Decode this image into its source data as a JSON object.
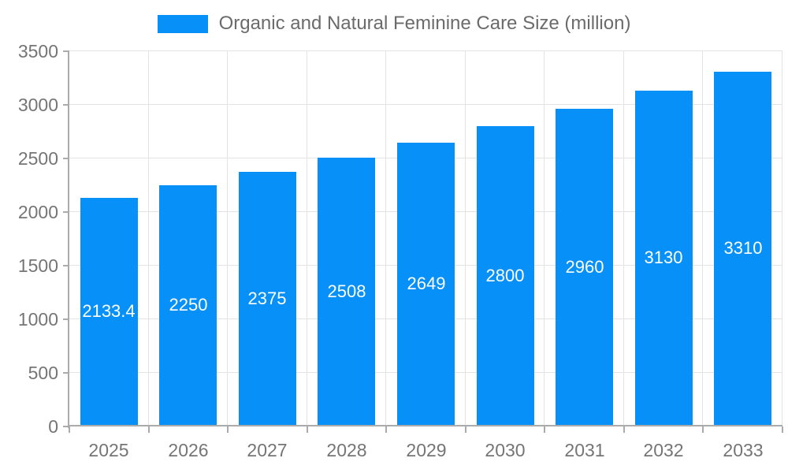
{
  "chart_data": {
    "type": "bar",
    "legend": "Organic and Natural Feminine Care Size (million)",
    "legend_position": "top",
    "categories": [
      "2025",
      "2026",
      "2027",
      "2028",
      "2029",
      "2030",
      "2031",
      "2032",
      "2033"
    ],
    "values": [
      2133.4,
      2250,
      2375,
      2508,
      2649,
      2800,
      2960,
      3130,
      3310
    ],
    "value_labels": [
      "2133.4",
      "2250",
      "2375",
      "2508",
      "2649",
      "2800",
      "2960",
      "3130",
      "3310"
    ],
    "ylim": [
      0,
      3500
    ],
    "yticks": [
      0,
      500,
      1000,
      1500,
      2000,
      2500,
      3000,
      3500
    ],
    "grid": true,
    "colors": {
      "bar": "#0690f8",
      "grid": "#e3e3e3",
      "axis": "#ababab",
      "tick_label": "#757575",
      "legend_label": "#6b6b6b",
      "bar_label": "#ffffff",
      "background": "#ffffff"
    }
  }
}
